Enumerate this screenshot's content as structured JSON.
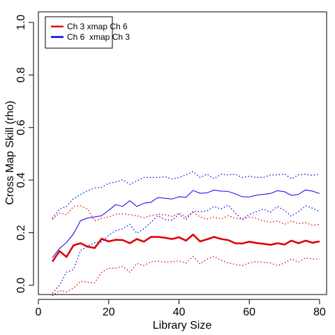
{
  "chart_data": {
    "type": "line",
    "xlabel": "Library Size",
    "ylabel": "Cross Map Skill (rho)",
    "xlim": [
      0,
      82
    ],
    "ylim": [
      -0.035,
      1.04
    ],
    "xticks": [
      0,
      20,
      40,
      60,
      80
    ],
    "yticks": [
      0.0,
      0.2,
      0.4,
      0.6,
      0.8,
      1.0
    ],
    "ytick_labels": [
      "0.0",
      "0.2",
      "0.4",
      "0.6",
      "0.8",
      "1.0"
    ],
    "grid": false,
    "legend_position": "top-left",
    "x": [
      4,
      6,
      8,
      10,
      12,
      14,
      16,
      18,
      20,
      22,
      24,
      26,
      28,
      30,
      32,
      34,
      36,
      38,
      40,
      42,
      44,
      46,
      48,
      50,
      52,
      54,
      56,
      58,
      60,
      62,
      64,
      66,
      68,
      70,
      72,
      74,
      76,
      78,
      80
    ],
    "series": [
      {
        "name": "Ch 3 xmap Ch 6",
        "color": "#dd0000",
        "values": [
          0.09,
          0.13,
          0.108,
          0.152,
          0.16,
          0.147,
          0.142,
          0.177,
          0.167,
          0.173,
          0.172,
          0.16,
          0.176,
          0.166,
          0.184,
          0.184,
          0.181,
          0.176,
          0.183,
          0.17,
          0.193,
          0.167,
          0.175,
          0.184,
          0.176,
          0.172,
          0.16,
          0.159,
          0.166,
          0.161,
          0.158,
          0.154,
          0.16,
          0.155,
          0.17,
          0.16,
          0.17,
          0.162,
          0.167
        ],
        "upper": [
          0.25,
          0.275,
          0.268,
          0.3,
          0.302,
          0.29,
          0.245,
          0.255,
          0.26,
          0.27,
          0.272,
          0.268,
          0.265,
          0.257,
          0.265,
          0.27,
          0.268,
          0.262,
          0.275,
          0.26,
          0.278,
          0.26,
          0.252,
          0.26,
          0.252,
          0.265,
          0.255,
          0.252,
          0.26,
          0.255,
          0.245,
          0.24,
          0.245,
          0.232,
          0.245,
          0.235,
          0.238,
          0.228,
          0.232
        ],
        "lower": [
          -0.04,
          -0.02,
          -0.025,
          -0.01,
          0.015,
          0.012,
          0.01,
          0.05,
          0.065,
          0.065,
          0.072,
          0.05,
          0.083,
          0.075,
          0.09,
          0.092,
          0.088,
          0.09,
          0.093,
          0.085,
          0.11,
          0.082,
          0.1,
          0.11,
          0.095,
          0.085,
          0.08,
          0.075,
          0.085,
          0.09,
          0.088,
          0.085,
          0.075,
          0.085,
          0.1,
          0.088,
          0.105,
          0.1,
          0.1
        ]
      },
      {
        "name": "Ch 6  xmap Ch 3",
        "color": "#0000ee",
        "values": [
          0.105,
          0.14,
          0.163,
          0.196,
          0.246,
          0.256,
          0.26,
          0.265,
          0.285,
          0.307,
          0.3,
          0.322,
          0.3,
          0.312,
          0.316,
          0.334,
          0.331,
          0.328,
          0.337,
          0.335,
          0.361,
          0.35,
          0.352,
          0.362,
          0.358,
          0.357,
          0.348,
          0.337,
          0.336,
          0.343,
          0.346,
          0.349,
          0.36,
          0.356,
          0.342,
          0.346,
          0.363,
          0.358,
          0.349
        ],
        "upper": [
          0.255,
          0.29,
          0.3,
          0.33,
          0.345,
          0.36,
          0.37,
          0.373,
          0.388,
          0.393,
          0.402,
          0.384,
          0.397,
          0.41,
          0.41,
          0.41,
          0.413,
          0.404,
          0.41,
          0.42,
          0.433,
          0.41,
          0.423,
          0.405,
          0.423,
          0.42,
          0.423,
          0.41,
          0.415,
          0.41,
          0.41,
          0.42,
          0.42,
          0.424,
          0.405,
          0.42,
          0.423,
          0.418,
          0.423
        ],
        "lower": [
          -0.03,
          0.0,
          0.05,
          0.06,
          0.132,
          0.15,
          0.162,
          0.165,
          0.19,
          0.208,
          0.215,
          0.232,
          0.198,
          0.215,
          0.24,
          0.265,
          0.25,
          0.248,
          0.27,
          0.25,
          0.282,
          0.28,
          0.283,
          0.3,
          0.29,
          0.305,
          0.275,
          0.25,
          0.27,
          0.28,
          0.29,
          0.278,
          0.3,
          0.285,
          0.263,
          0.28,
          0.303,
          0.293,
          0.28
        ]
      }
    ]
  }
}
